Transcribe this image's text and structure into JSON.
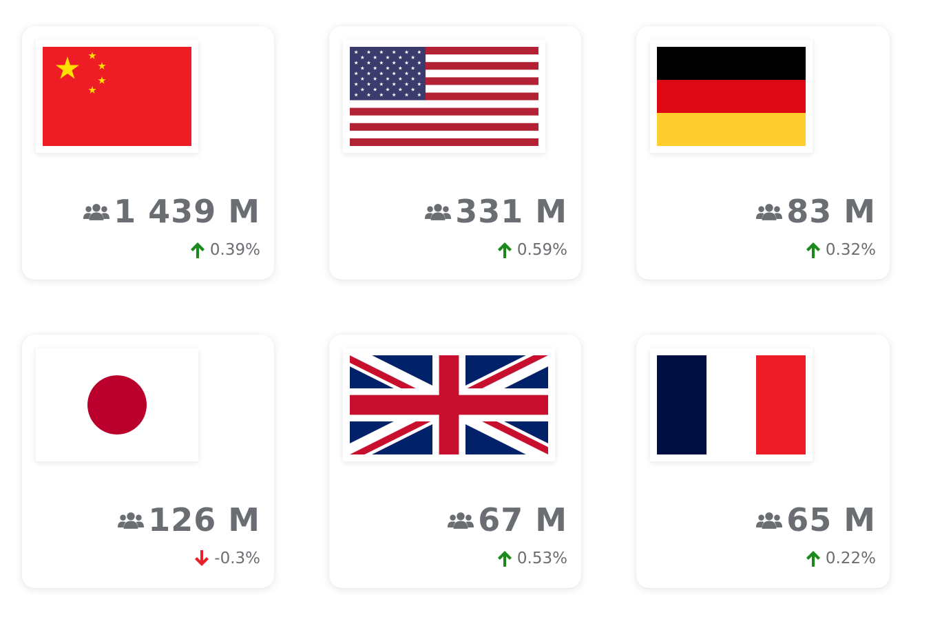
{
  "cards": [
    {
      "country_flag": "china-flag",
      "population": "1 439 M",
      "growth": "0.39%",
      "trend": "up"
    },
    {
      "country_flag": "usa-flag",
      "population": "331 M",
      "growth": "0.59%",
      "trend": "up"
    },
    {
      "country_flag": "germany-flag",
      "population": "83 M",
      "growth": "0.32%",
      "trend": "up"
    },
    {
      "country_flag": "japan-flag",
      "population": "126 M",
      "growth": "-0.3%",
      "trend": "down"
    },
    {
      "country_flag": "uk-flag",
      "population": "67 M",
      "growth": "0.53%",
      "trend": "up"
    },
    {
      "country_flag": "france-flag",
      "population": "65 M",
      "growth": "0.22%",
      "trend": "up"
    }
  ],
  "icons": {
    "population": "users-icon",
    "up": "arrow-up-icon",
    "down": "arrow-down-icon"
  },
  "colors": {
    "text": "#6a6e73",
    "up_arrow": "#1a8a1a",
    "down_arrow": "#e8202a"
  }
}
